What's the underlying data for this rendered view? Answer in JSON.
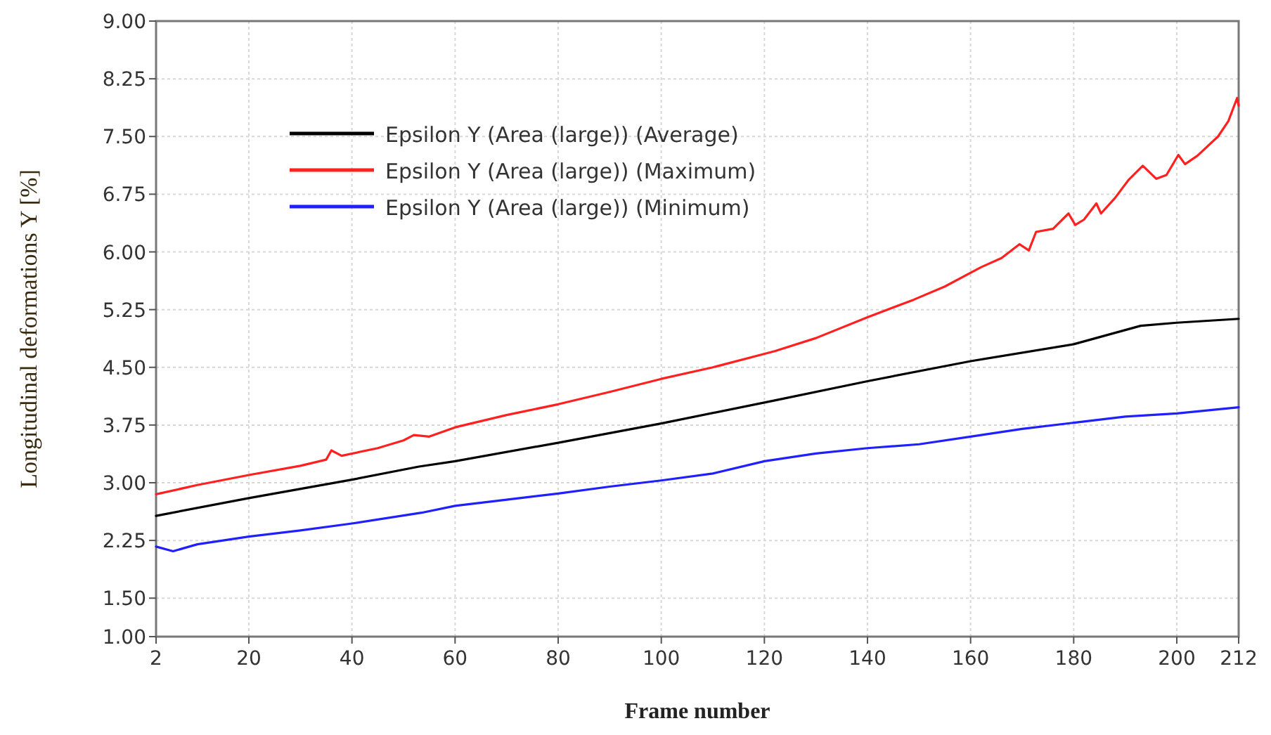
{
  "chart_data": {
    "type": "line",
    "xlabel": "Frame number",
    "ylabel": "Longitudinal deformations Y [%]",
    "xlim": [
      2,
      212
    ],
    "xticks": [
      2,
      20,
      40,
      60,
      80,
      100,
      120,
      140,
      160,
      180,
      200,
      212
    ],
    "ylim": [
      1,
      9
    ],
    "yticks": [
      {
        "value": 1,
        "label": "1.00"
      },
      {
        "value": 1.5,
        "label": "1.50"
      },
      {
        "value": 2.25,
        "label": "2.25"
      },
      {
        "value": 3,
        "label": "3.00"
      },
      {
        "value": 3.75,
        "label": "3.75"
      },
      {
        "value": 4.5,
        "label": "4.50"
      },
      {
        "value": 5.25,
        "label": "5.25"
      },
      {
        "value": 6,
        "label": "6.00"
      },
      {
        "value": 6.75,
        "label": "6.75"
      },
      {
        "value": 7.5,
        "label": "7.50"
      },
      {
        "value": 8.25,
        "label": "8.25"
      },
      {
        "value": 9,
        "label": "9.00"
      }
    ],
    "grid": true,
    "legend": "top left",
    "line_style": "solid",
    "series": [
      {
        "name": "Epsilon Y (Area (large)) (Average)",
        "color": "#000000",
        "x": [
          2,
          20,
          40,
          53,
          60,
          80,
          100,
          122,
          140,
          160,
          180,
          193,
          200,
          212
        ],
        "values": [
          2.57,
          2.8,
          3.04,
          3.21,
          3.28,
          3.52,
          3.77,
          4.07,
          4.32,
          4.58,
          4.8,
          5.04,
          5.08,
          5.13
        ]
      },
      {
        "name": "Epsilon Y (Area (large)) (Maximum)",
        "color": "#ff2020",
        "x": [
          2,
          10,
          20,
          30,
          35,
          36,
          38,
          45,
          50,
          52,
          55,
          60,
          70,
          80,
          90,
          100,
          110,
          122,
          130,
          140,
          149,
          155,
          162,
          166,
          169.5,
          171.3,
          172.7,
          176,
          179,
          180.3,
          182,
          184.4,
          185.3,
          188,
          190.7,
          193.4,
          196,
          198,
          200.3,
          201.6,
          204,
          208,
          210,
          211.7,
          212
        ],
        "values": [
          2.85,
          2.97,
          3.1,
          3.22,
          3.3,
          3.42,
          3.35,
          3.45,
          3.55,
          3.62,
          3.6,
          3.72,
          3.88,
          4.02,
          4.18,
          4.35,
          4.5,
          4.71,
          4.88,
          5.15,
          5.38,
          5.55,
          5.8,
          5.92,
          6.1,
          6.02,
          6.26,
          6.3,
          6.5,
          6.35,
          6.42,
          6.63,
          6.5,
          6.7,
          6.94,
          7.12,
          6.95,
          7.0,
          7.26,
          7.14,
          7.25,
          7.5,
          7.7,
          8.0,
          7.9
        ]
      },
      {
        "name": "Epsilon Y (Area (large)) (Minimum)",
        "color": "#2020ff",
        "x": [
          2,
          5.3,
          10,
          20,
          30,
          40,
          53.5,
          60,
          70,
          80,
          90,
          100,
          110,
          120,
          130,
          140,
          150,
          160,
          170,
          180,
          190,
          200,
          212
        ],
        "values": [
          2.17,
          2.11,
          2.2,
          2.3,
          2.38,
          2.47,
          2.61,
          2.7,
          2.78,
          2.86,
          2.95,
          3.03,
          3.12,
          3.28,
          3.38,
          3.45,
          3.5,
          3.6,
          3.7,
          3.78,
          3.86,
          3.9,
          3.98
        ]
      }
    ]
  }
}
